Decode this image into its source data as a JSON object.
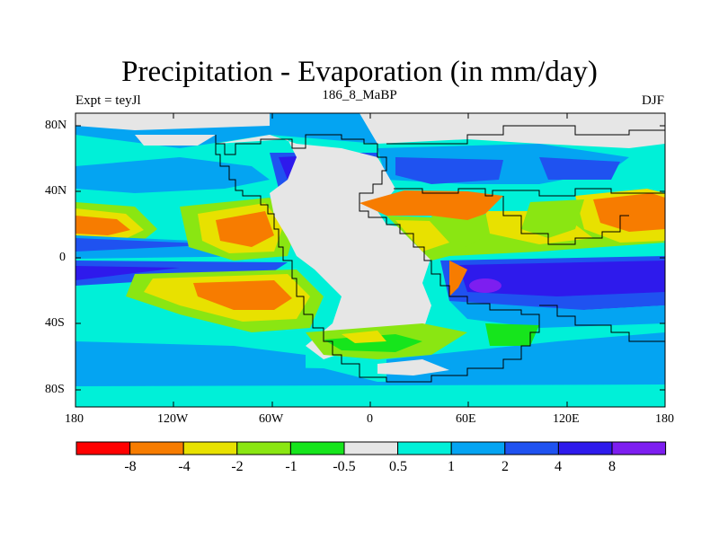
{
  "title": "Precipitation - Evaporation (in mm/day)",
  "experiment_label": "Expt = teyJl",
  "center_label": "186_8_MaBP",
  "season_label": "DJF",
  "lat_labels": [
    "80N",
    "40N",
    "0",
    "40S",
    "80S"
  ],
  "lon_labels": [
    "180",
    "120W",
    "60W",
    "0",
    "60E",
    "120E",
    "180"
  ],
  "colorbar": {
    "colors": [
      "#ff0000",
      "#f77c00",
      "#e8e100",
      "#8ae612",
      "#16e51c",
      "#e6e6e6",
      "#00f0d8",
      "#04a4f2",
      "#1f52f0",
      "#2e1aec",
      "#7d1ef0"
    ],
    "labels": [
      "-8",
      "-4",
      "-2",
      "-1",
      "-0.5",
      "0.5",
      "1",
      "2",
      "4",
      "8"
    ]
  }
}
